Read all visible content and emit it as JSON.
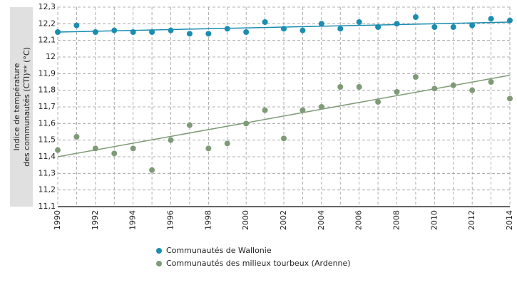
{
  "chart_data": {
    "type": "scatter",
    "y_label_lines": [
      "Indice de température",
      "des communautés (CTI)** (°C)"
    ],
    "x": [
      1990,
      1991,
      1992,
      1993,
      1994,
      1995,
      1996,
      1997,
      1998,
      1999,
      2000,
      2001,
      2002,
      2003,
      2004,
      2005,
      2006,
      2007,
      2008,
      2009,
      2010,
      2011,
      2012,
      2013,
      2014
    ],
    "xlim": [
      1990,
      2014
    ],
    "xticks": [
      1990,
      1992,
      1994,
      1996,
      1998,
      2000,
      2002,
      2004,
      2006,
      2008,
      2010,
      2012,
      2014
    ],
    "xminorticks": [
      1991,
      1993,
      1995,
      1997,
      1999,
      2001,
      2003,
      2005,
      2007,
      2009,
      2011,
      2013
    ],
    "ylim": [
      11.1,
      12.3
    ],
    "yticks": [
      {
        "value": 11.1,
        "label": "11,1"
      },
      {
        "value": 11.2,
        "label": "11,2"
      },
      {
        "value": 11.3,
        "label": "11,3"
      },
      {
        "value": 11.4,
        "label": "11,4"
      },
      {
        "value": 11.5,
        "label": "11,5"
      },
      {
        "value": 11.6,
        "label": "11,6"
      },
      {
        "value": 11.7,
        "label": "11,7"
      },
      {
        "value": 11.8,
        "label": "11,8"
      },
      {
        "value": 11.9,
        "label": "11,9"
      },
      12,
      {
        "value": 12.1,
        "label": "12,1"
      },
      {
        "value": 12.2,
        "label": "12,2"
      },
      {
        "value": 12.3,
        "label": "12,3"
      }
    ],
    "grid": true,
    "trend_x": [
      1990,
      2014
    ],
    "series": [
      {
        "name": "Communautés de Wallonie",
        "color": "#1b8db0",
        "values": [
          12.15,
          12.19,
          12.15,
          12.16,
          12.15,
          12.15,
          12.16,
          12.14,
          12.14,
          12.17,
          12.15,
          12.21,
          12.17,
          12.16,
          12.2,
          12.17,
          12.21,
          12.18,
          12.2,
          12.24,
          12.18,
          12.18,
          12.19,
          12.23,
          12.22
        ],
        "trend": [
          12.15,
          12.21
        ]
      },
      {
        "name": "Communautés des milieux tourbeux (Ardenne)",
        "color": "#7f9a77",
        "values": [
          11.44,
          11.52,
          11.45,
          11.42,
          11.45,
          11.32,
          11.5,
          11.59,
          11.45,
          11.48,
          11.6,
          11.68,
          11.51,
          11.68,
          11.7,
          11.82,
          11.82,
          11.73,
          11.79,
          11.88,
          11.81,
          11.83,
          11.8,
          11.85,
          11.75
        ],
        "trend": [
          11.4,
          11.89
        ]
      }
    ]
  }
}
